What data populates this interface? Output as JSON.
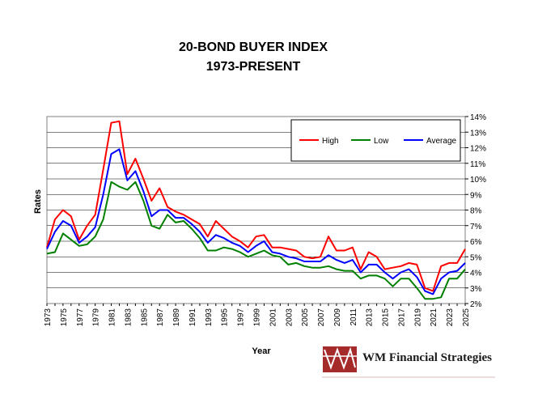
{
  "chart_data": {
    "type": "line",
    "title": "20-BOND BUYER INDEX",
    "subtitle": "1973-PRESENT",
    "xlabel": "Year",
    "ylabel": "Rates",
    "ylim": [
      2,
      14
    ],
    "y_ticks": [
      "2%",
      "3%",
      "4%",
      "5%",
      "6%",
      "7%",
      "8%",
      "9%",
      "10%",
      "11%",
      "12%",
      "13%",
      "14%"
    ],
    "x_tick_labels": [
      "1973",
      "1975",
      "1977",
      "1979",
      "1981",
      "1983",
      "1985",
      "1987",
      "1989",
      "1991",
      "1993",
      "1995",
      "1997",
      "1999",
      "2001",
      "2003",
      "2005",
      "2007",
      "2009",
      "2011",
      "2013",
      "2015",
      "2017",
      "2019",
      "2021",
      "2023",
      "2025"
    ],
    "grid": true,
    "legend_position": "top-right",
    "x": [
      1973,
      1974,
      1975,
      1976,
      1977,
      1978,
      1979,
      1980,
      1981,
      1982,
      1983,
      1984,
      1985,
      1986,
      1987,
      1988,
      1989,
      1990,
      1991,
      1992,
      1993,
      1994,
      1995,
      1996,
      1997,
      1998,
      1999,
      2000,
      2001,
      2002,
      2003,
      2004,
      2005,
      2006,
      2007,
      2008,
      2009,
      2010,
      2011,
      2012,
      2013,
      2014,
      2015,
      2016,
      2017,
      2018,
      2019,
      2020,
      2021,
      2022,
      2023,
      2024,
      2025
    ],
    "series": [
      {
        "name": "High",
        "color": "#ff0000",
        "values": [
          5.6,
          7.4,
          8.0,
          7.6,
          6.1,
          7.0,
          7.7,
          10.6,
          13.6,
          13.7,
          10.3,
          11.3,
          10.0,
          8.6,
          9.4,
          8.2,
          7.9,
          7.7,
          7.4,
          7.1,
          6.3,
          7.3,
          6.8,
          6.3,
          6.0,
          5.6,
          6.3,
          6.4,
          5.6,
          5.6,
          5.5,
          5.4,
          5.0,
          4.9,
          5.0,
          6.3,
          5.4,
          5.4,
          5.6,
          4.2,
          5.3,
          5.0,
          4.2,
          4.3,
          4.4,
          4.6,
          4.5,
          3.0,
          2.8,
          4.4,
          4.6,
          4.6,
          5.5
        ]
      },
      {
        "name": "Low",
        "color": "#008000",
        "values": [
          5.2,
          5.3,
          6.5,
          6.1,
          5.7,
          5.8,
          6.3,
          7.4,
          9.8,
          9.5,
          9.3,
          9.8,
          8.6,
          7.0,
          6.8,
          7.7,
          7.2,
          7.3,
          6.8,
          6.2,
          5.4,
          5.4,
          5.6,
          5.5,
          5.3,
          5.0,
          5.2,
          5.4,
          5.1,
          5.0,
          4.5,
          4.6,
          4.4,
          4.3,
          4.3,
          4.4,
          4.2,
          4.1,
          4.1,
          3.6,
          3.8,
          3.8,
          3.6,
          3.1,
          3.6,
          3.6,
          3.0,
          2.3,
          2.3,
          2.4,
          3.6,
          3.6,
          4.2
        ]
      },
      {
        "name": "Average",
        "color": "#0000ff",
        "values": [
          5.5,
          6.6,
          7.3,
          7.0,
          5.9,
          6.3,
          6.9,
          9.0,
          11.6,
          11.9,
          9.9,
          10.5,
          9.2,
          7.6,
          8.0,
          8.0,
          7.5,
          7.5,
          7.1,
          6.6,
          5.9,
          6.4,
          6.2,
          5.9,
          5.7,
          5.3,
          5.7,
          6.0,
          5.3,
          5.2,
          5.0,
          4.9,
          4.7,
          4.7,
          4.7,
          5.1,
          4.8,
          4.6,
          4.8,
          4.0,
          4.5,
          4.5,
          4.0,
          3.6,
          4.0,
          4.2,
          3.7,
          2.8,
          2.6,
          3.6,
          4.0,
          4.1,
          4.6
        ]
      }
    ]
  },
  "logo": {
    "text": "WM Financial Strategies"
  }
}
